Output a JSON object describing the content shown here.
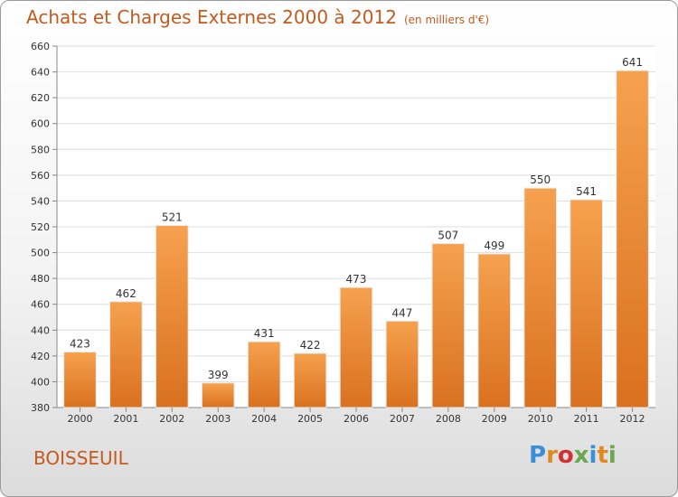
{
  "chart_data": {
    "type": "bar",
    "title": "Achats et Charges Externes 2000 à 2012",
    "subtitle": "(en milliers d'€)",
    "categories": [
      "2000",
      "2001",
      "2002",
      "2003",
      "2004",
      "2005",
      "2006",
      "2007",
      "2008",
      "2009",
      "2010",
      "2011",
      "2012"
    ],
    "values": [
      423,
      462,
      521,
      399,
      431,
      422,
      473,
      447,
      507,
      499,
      550,
      541,
      641
    ],
    "ylim": [
      380,
      660
    ],
    "yticks": [
      380,
      400,
      420,
      440,
      460,
      480,
      500,
      520,
      540,
      560,
      580,
      600,
      620,
      640,
      660
    ],
    "grid": true,
    "bar_color_top": "#f6a14e",
    "bar_color_bottom": "#d9711f"
  },
  "footer": {
    "commune": "BOISSEUIL",
    "logo": "Proxiti"
  }
}
